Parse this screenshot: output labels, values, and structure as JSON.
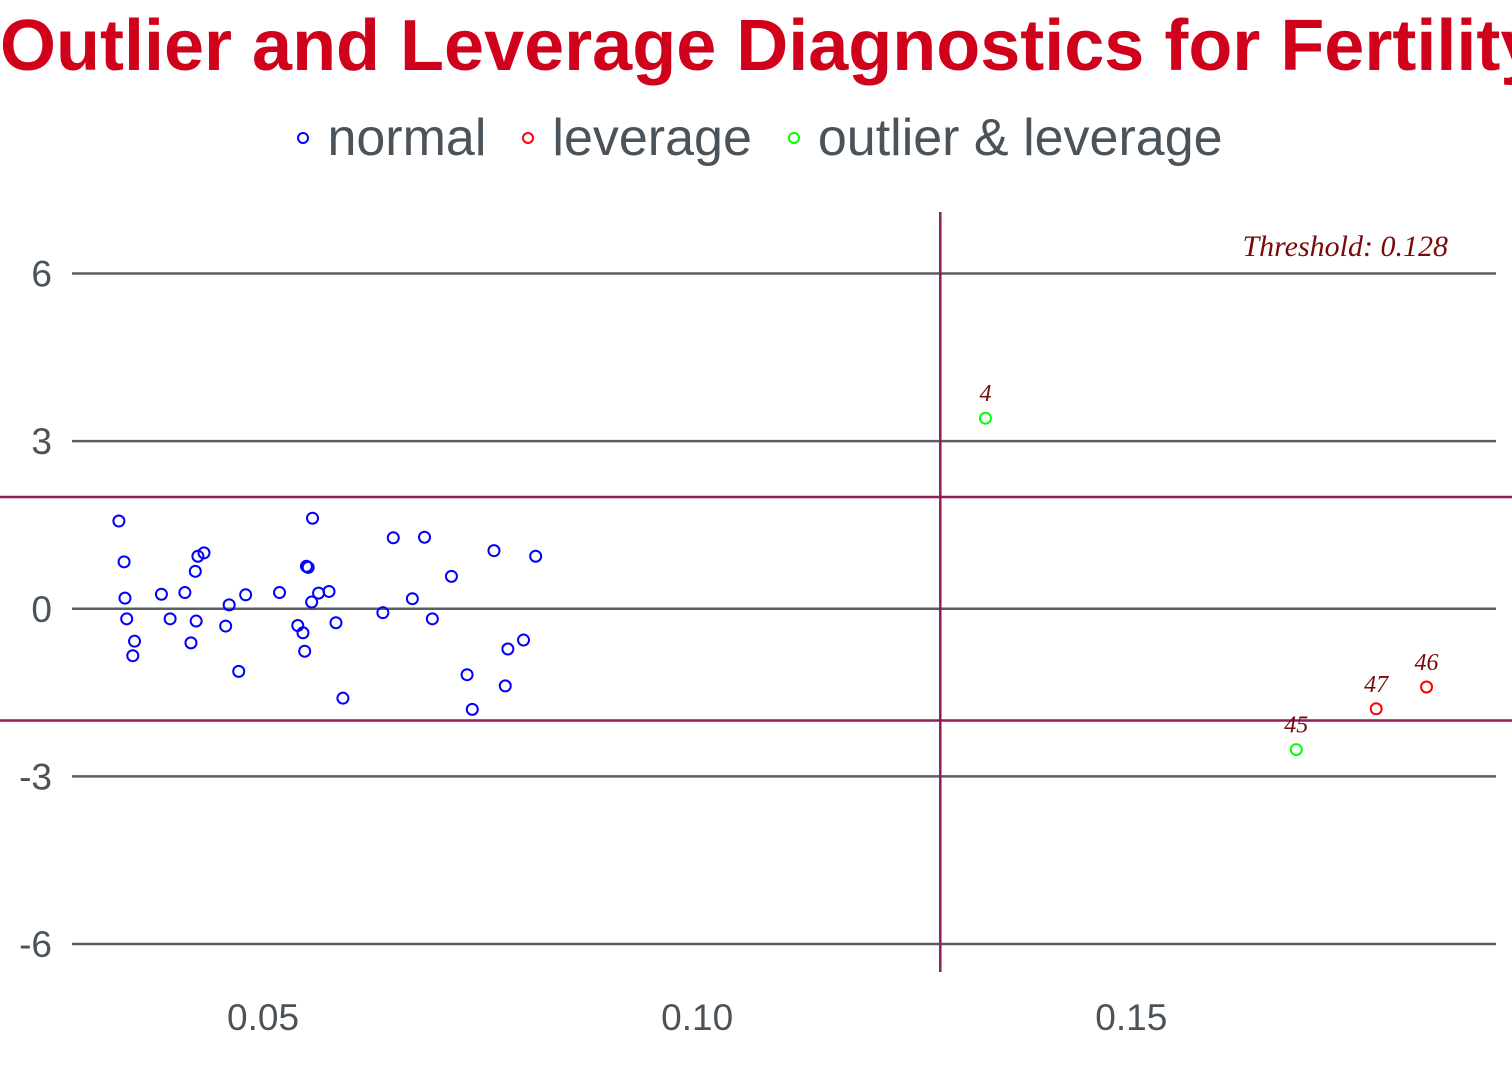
{
  "chart_data": {
    "type": "scatter",
    "title": "Outlier and Leverage Diagnostics for Fertility",
    "xlabel": "",
    "ylabel": "",
    "xlim": [
      0.028,
      0.192
    ],
    "ylim": [
      -6.5,
      7.1
    ],
    "x_ticks": [
      0.05,
      0.1,
      0.15
    ],
    "x_tick_labels": [
      "0.05",
      "0.10",
      "0.15"
    ],
    "y_ticks": [
      -6,
      -3,
      0,
      3,
      6
    ],
    "y_tick_labels": [
      "-6",
      "-3",
      "0",
      "3",
      "6"
    ],
    "grid": "horizontal major only",
    "legend_position": "top",
    "leverage_threshold": 0.128,
    "threshold_label": "Threshold: 0.128",
    "residual_cutoffs": [
      -2,
      2
    ],
    "reference_line_color": "#8e1e55",
    "series": [
      {
        "name": "normal",
        "color": "#0000ff",
        "points": [
          [
            0.0334,
            1.57
          ],
          [
            0.034,
            0.84
          ],
          [
            0.0341,
            0.19
          ],
          [
            0.0343,
            -0.18
          ],
          [
            0.035,
            -0.84
          ],
          [
            0.0352,
            -0.58
          ],
          [
            0.0383,
            0.26
          ],
          [
            0.0393,
            -0.18
          ],
          [
            0.041,
            0.29
          ],
          [
            0.0417,
            -0.61
          ],
          [
            0.0423,
            -0.22
          ],
          [
            0.0422,
            0.67
          ],
          [
            0.0425,
            0.94
          ],
          [
            0.0432,
            1.0
          ],
          [
            0.0457,
            -0.31
          ],
          [
            0.0461,
            0.07
          ],
          [
            0.0472,
            -1.12
          ],
          [
            0.048,
            0.25
          ],
          [
            0.0519,
            0.29
          ],
          [
            0.054,
            -0.3
          ],
          [
            0.0546,
            -0.43
          ],
          [
            0.0548,
            -0.76
          ],
          [
            0.055,
            0.76
          ],
          [
            0.0552,
            0.74
          ],
          [
            0.0556,
            0.12
          ],
          [
            0.0557,
            1.62
          ],
          [
            0.0564,
            0.28
          ],
          [
            0.0576,
            0.31
          ],
          [
            0.0584,
            -0.25
          ],
          [
            0.0592,
            -1.6
          ],
          [
            0.0638,
            -0.07
          ],
          [
            0.065,
            1.27
          ],
          [
            0.0672,
            0.18
          ],
          [
            0.0686,
            1.28
          ],
          [
            0.0695,
            -0.18
          ],
          [
            0.0717,
            0.58
          ],
          [
            0.0735,
            -1.18
          ],
          [
            0.0741,
            -1.8
          ],
          [
            0.0766,
            1.04
          ],
          [
            0.0779,
            -1.38
          ],
          [
            0.0782,
            -0.72
          ],
          [
            0.08,
            -0.56
          ],
          [
            0.0814,
            0.94
          ]
        ]
      },
      {
        "name": "leverage",
        "color": "#ff0000",
        "points": [
          [
            0.1782,
            -1.79
          ],
          [
            0.184,
            -1.4
          ]
        ],
        "labels": [
          "47",
          "46"
        ]
      },
      {
        "name": "outlier & leverage",
        "color": "#00ff00",
        "points": [
          [
            0.1332,
            3.41
          ],
          [
            0.169,
            -2.52
          ]
        ],
        "labels": [
          "4",
          "45"
        ]
      }
    ]
  }
}
